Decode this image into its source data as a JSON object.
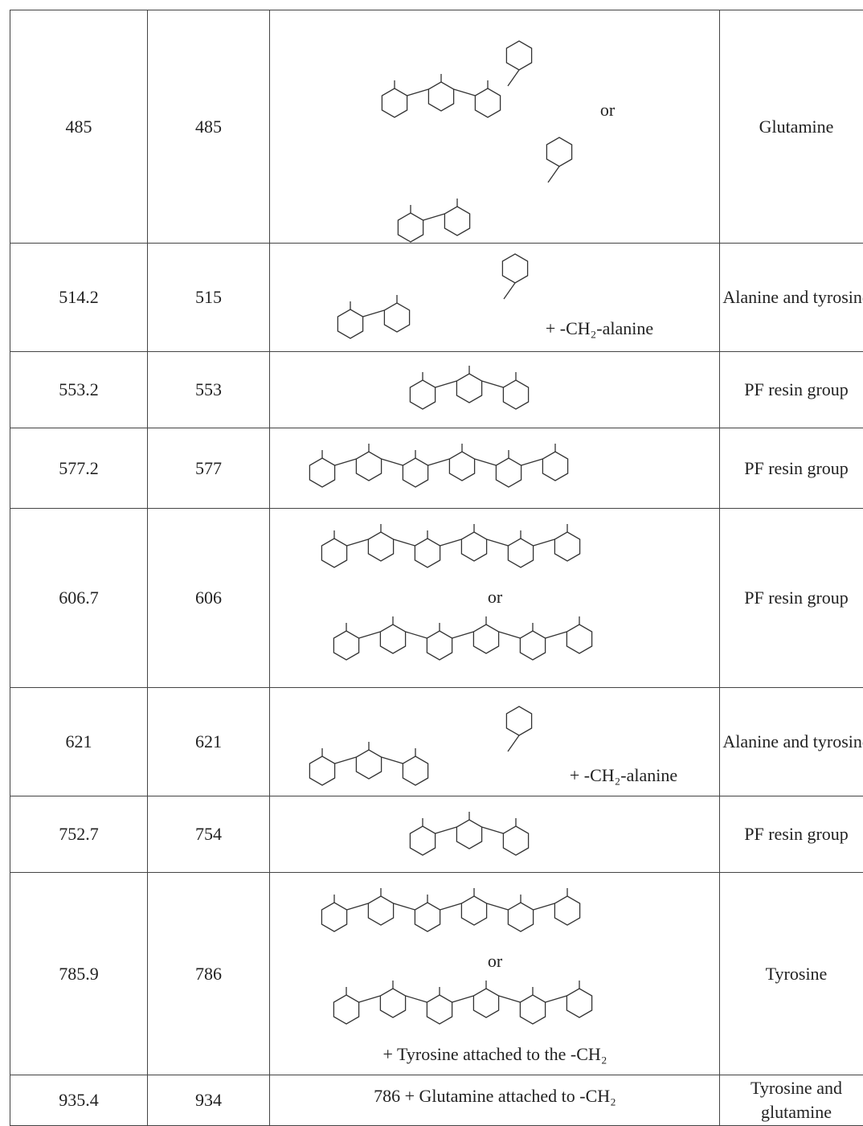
{
  "table": {
    "rows": [
      {
        "observed": 485,
        "calculated": 485,
        "notes": [
          "or"
        ],
        "assignment": "Glutamine"
      },
      {
        "observed": 514.2,
        "calculated": 515,
        "notes": [
          "+ -CH₂-alanine"
        ],
        "assignment": "Alanine and tyrosine"
      },
      {
        "observed": 553.2,
        "calculated": 553,
        "notes": [],
        "assignment": "PF resin group"
      },
      {
        "observed": 577.2,
        "calculated": 577,
        "notes": [],
        "assignment": "PF resin group"
      },
      {
        "observed": 606.7,
        "calculated": 606,
        "notes": [
          "or"
        ],
        "assignment": "PF resin group"
      },
      {
        "observed": 621,
        "calculated": 621,
        "notes": [
          "+ -CH₂-alanine"
        ],
        "assignment": "Alanine and tyrosine"
      },
      {
        "observed": 752.7,
        "calculated": 754,
        "notes": [],
        "assignment": "PF resin group"
      },
      {
        "observed": 785.9,
        "calculated": 786,
        "notes": [
          "or",
          "+ Tyrosine attached to the -CH₂"
        ],
        "assignment": "Tyrosine"
      },
      {
        "observed": 935.4,
        "calculated": 934,
        "notes": [
          "786 + Glutamine attached to -CH₂"
        ],
        "assignment": "Tyrosine and glutamine"
      }
    ]
  }
}
